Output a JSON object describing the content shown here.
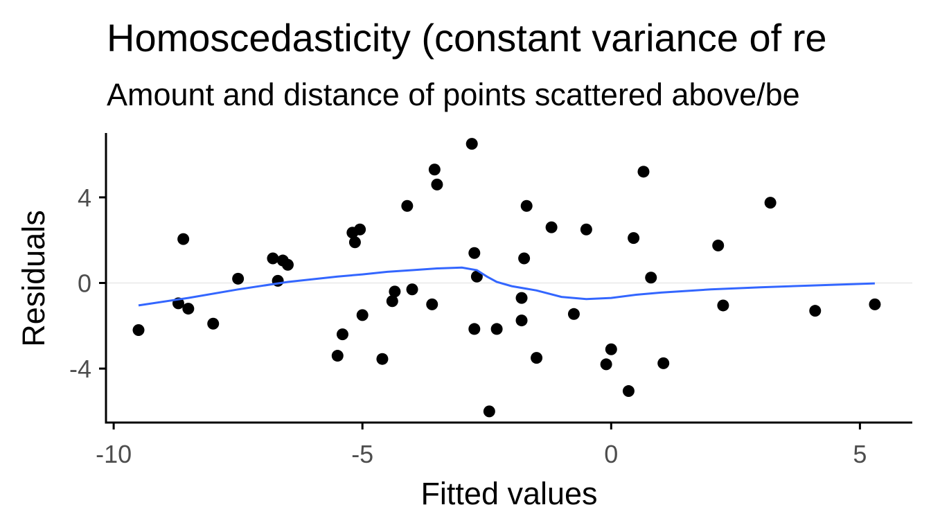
{
  "chart_data": {
    "type": "scatter",
    "title": "Homoscedasticity (constant variance of re",
    "subtitle": "Amount and distance of points scattered above/be",
    "xlabel": "Fitted values",
    "ylabel": "Residuals",
    "xlim": [
      -10.2,
      6.0
    ],
    "ylim": [
      -6.5,
      7.0
    ],
    "x_ticks": [
      -10,
      -5,
      0,
      5
    ],
    "x_tick_labels": [
      "-10",
      "-5",
      "0",
      "5"
    ],
    "y_ticks": [
      4,
      0,
      -4
    ],
    "y_tick_labels": [
      "4",
      "0",
      "-4"
    ],
    "reference_line_y": 0,
    "grid": false,
    "legend": "none",
    "colors": {
      "points": "#000000",
      "smooth": "#3366ff",
      "refline": "#e8e8e8",
      "axis": "#000000"
    },
    "series": [
      {
        "name": "residuals",
        "kind": "points",
        "x": [
          -9.5,
          -8.7,
          -8.6,
          -8.5,
          -8.0,
          -7.5,
          -6.8,
          -6.6,
          -6.7,
          -6.5,
          -5.5,
          -5.4,
          -5.2,
          -5.15,
          -5.05,
          -5.0,
          -4.6,
          -4.4,
          -4.35,
          -4.1,
          -4.0,
          -3.6,
          -3.55,
          -3.5,
          -2.8,
          -2.75,
          -2.75,
          -2.7,
          -2.45,
          -2.3,
          -1.8,
          -1.8,
          -1.75,
          -1.7,
          -1.5,
          -1.2,
          -0.75,
          -0.5,
          -0.1,
          0.0,
          0.35,
          0.45,
          0.65,
          0.8,
          1.05,
          2.15,
          2.25,
          3.2,
          4.1,
          5.3
        ],
        "y": [
          -2.2,
          -0.95,
          2.05,
          -1.2,
          -1.9,
          0.2,
          1.15,
          1.05,
          0.1,
          0.85,
          -3.4,
          -2.4,
          2.35,
          1.9,
          2.5,
          -1.5,
          -3.55,
          -0.85,
          -0.4,
          3.6,
          -0.3,
          -1.0,
          5.3,
          4.6,
          6.5,
          1.4,
          -2.15,
          0.3,
          -6.0,
          -2.15,
          -0.7,
          -1.75,
          1.15,
          3.6,
          -3.5,
          2.6,
          -1.45,
          2.5,
          -3.8,
          -3.1,
          -5.05,
          2.1,
          5.2,
          0.25,
          -3.75,
          1.75,
          -1.05,
          3.75,
          -1.3,
          -1.0
        ]
      },
      {
        "name": "loess-smooth",
        "kind": "line",
        "x": [
          -9.5,
          -8.5,
          -7.5,
          -6.5,
          -5.5,
          -5.0,
          -4.5,
          -4.0,
          -3.5,
          -3.0,
          -2.7,
          -2.5,
          -2.3,
          -2.0,
          -1.5,
          -1.0,
          -0.5,
          0.0,
          0.5,
          1.0,
          2.0,
          3.0,
          4.0,
          5.3
        ],
        "y": [
          -1.05,
          -0.7,
          -0.3,
          0.05,
          0.3,
          0.4,
          0.52,
          0.6,
          0.68,
          0.72,
          0.6,
          0.3,
          0.05,
          -0.15,
          -0.35,
          -0.65,
          -0.75,
          -0.7,
          -0.55,
          -0.45,
          -0.3,
          -0.2,
          -0.12,
          -0.02
        ]
      }
    ]
  }
}
